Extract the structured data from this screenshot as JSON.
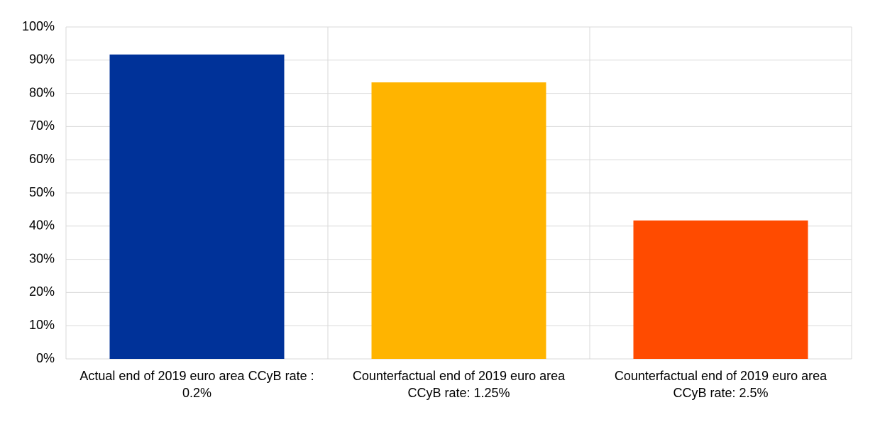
{
  "chart_data": {
    "type": "bar",
    "categories": [
      "Actual end of 2019 euro area CCyB rate : 0.2%",
      "Counterfactual end of 2019 euro area CCyB rate: 1.25%",
      "Counterfactual end of 2019 euro area CCyB rate: 2.5%"
    ],
    "values": [
      91.7,
      83.3,
      41.7
    ],
    "colors": [
      "#003299",
      "#ffb400",
      "#ff4b00"
    ],
    "ylim": [
      0,
      100
    ],
    "yticks": [
      {
        "value": 0,
        "label": "0%"
      },
      {
        "value": 10,
        "label": "10%"
      },
      {
        "value": 20,
        "label": "20%"
      },
      {
        "value": 30,
        "label": "30%"
      },
      {
        "value": 40,
        "label": "40%"
      },
      {
        "value": 50,
        "label": "50%"
      },
      {
        "value": 60,
        "label": "60%"
      },
      {
        "value": 70,
        "label": "70%"
      },
      {
        "value": 80,
        "label": "80%"
      },
      {
        "value": 90,
        "label": "90%"
      },
      {
        "value": 100,
        "label": "100%"
      }
    ],
    "grid": true
  }
}
